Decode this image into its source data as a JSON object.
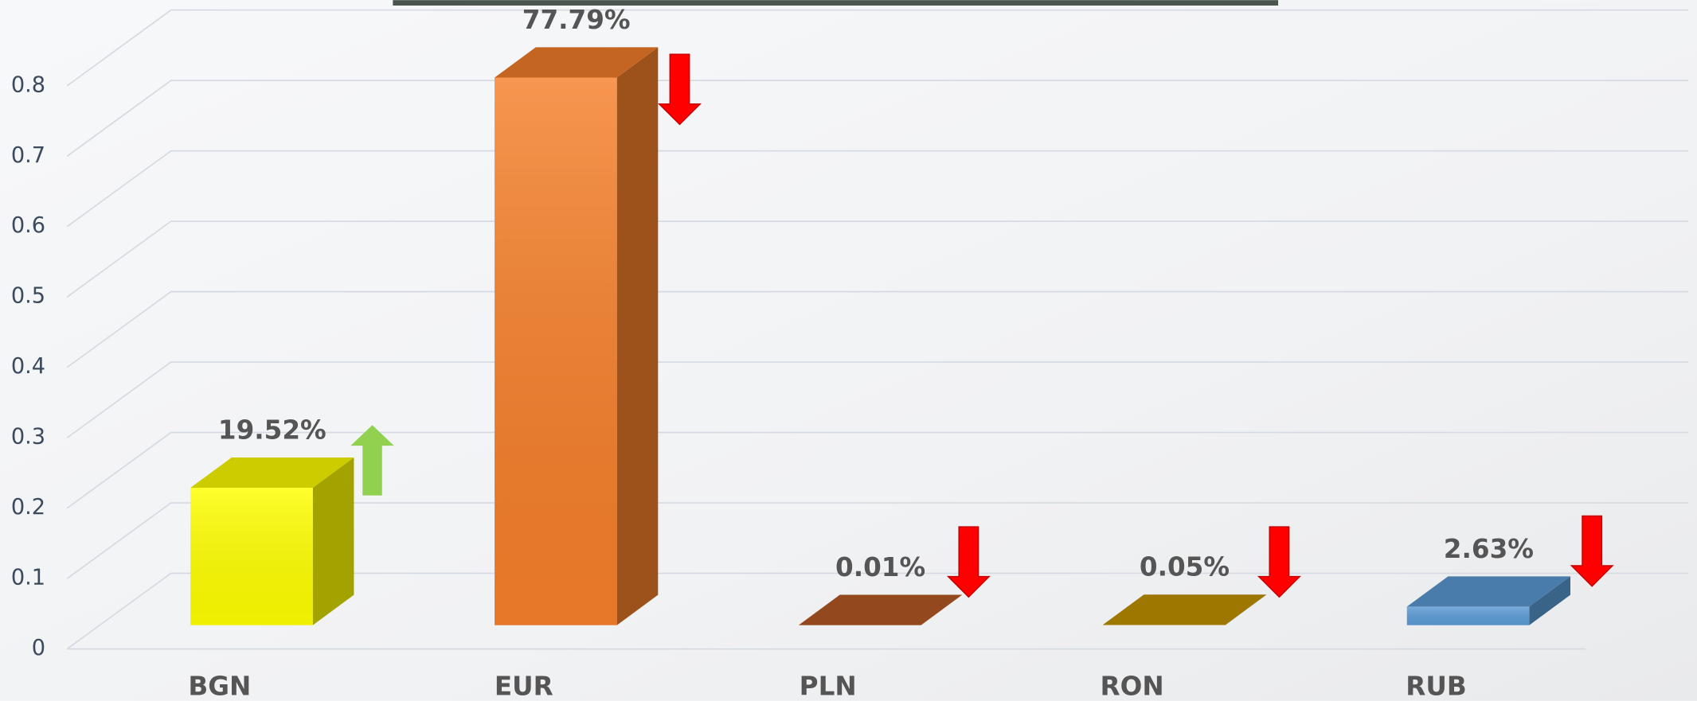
{
  "chart_data": {
    "type": "bar3d",
    "categories": [
      "BGN",
      "EUR",
      "PLN",
      "RON",
      "RUB"
    ],
    "values": [
      0.1952,
      0.7779,
      0.0001,
      0.0005,
      0.0263
    ],
    "value_labels": [
      "19.52%",
      "77.79%",
      "0.01%",
      "0.05%",
      "2.63%"
    ],
    "colors": [
      "#ffff00",
      "#f57f2a",
      "#b85a26",
      "#c49500",
      "#5b9bd5"
    ],
    "ylim": [
      0,
      0.8
    ],
    "yticks": [
      0,
      0.1,
      0.2,
      0.3,
      0.4,
      0.5,
      0.6,
      0.7,
      0.8
    ],
    "grid": true
  }
}
